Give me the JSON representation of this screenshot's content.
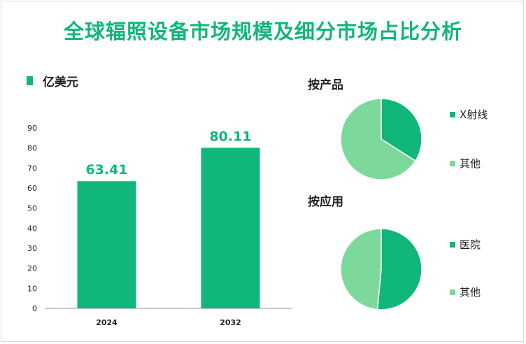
{
  "title": "全球辐照设备市场规模及细分市场占比分析",
  "unit_label": "亿美元",
  "colors": {
    "primary": "#10b67a",
    "secondary": "#7dd99b",
    "axis": "#999999"
  },
  "chart_data": [
    {
      "type": "bar",
      "categories": [
        "2024",
        "2032"
      ],
      "values": [
        63.41,
        80.11
      ],
      "value_labels": [
        "63.41",
        "80.11"
      ],
      "ylabel": "亿美元",
      "ylim": [
        0,
        90
      ],
      "yticks": [
        "0",
        "10",
        "20",
        "30",
        "40",
        "50",
        "60",
        "70",
        "80",
        "90"
      ],
      "grid": false
    },
    {
      "type": "pie",
      "title": "按产品",
      "labels": [
        "X射线",
        "其他"
      ],
      "values": [
        34,
        66
      ]
    },
    {
      "type": "pie",
      "title": "按应用",
      "labels": [
        "医院",
        "其他"
      ],
      "values": [
        51.5,
        48.5
      ]
    }
  ]
}
